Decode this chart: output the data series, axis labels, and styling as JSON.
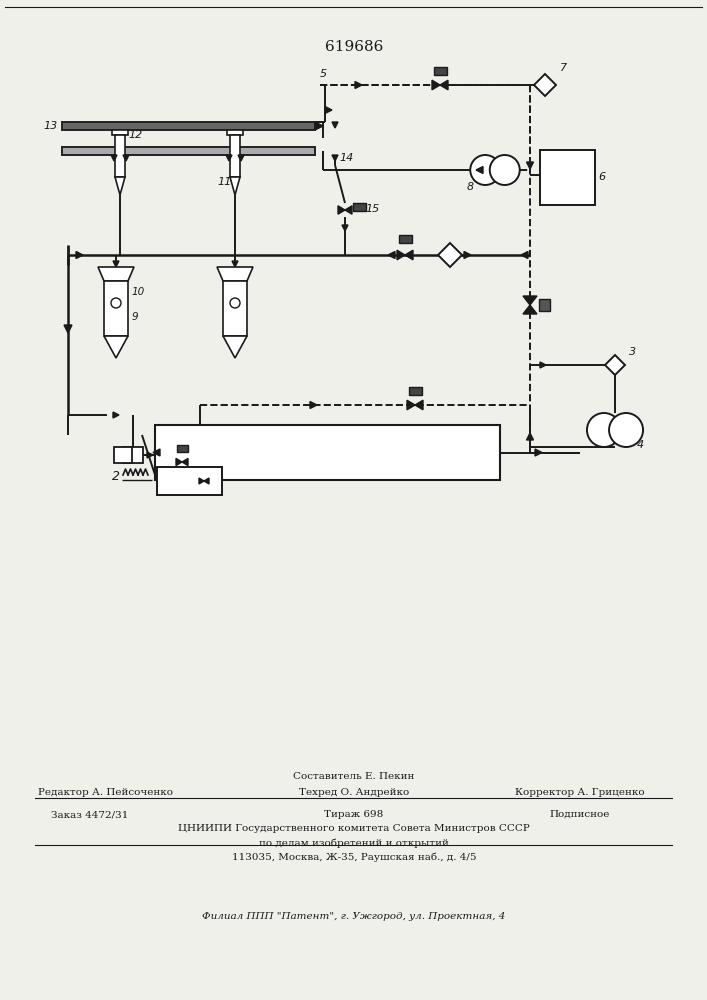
{
  "title": "619686",
  "bg": "#f0f0eb",
  "lc": "#1a1a1a",
  "footer": {
    "line1": "Составитель Е. Пекин",
    "line2_left": "Редактор А. Пейсоченко",
    "line2_mid": "Техред О. Андрейко",
    "line2_right": "Корректор А. Гриценко",
    "line3_left": "Заказ 4472/31",
    "line3_mid": "Тираж 698",
    "line3_right": "Подписное",
    "line4": "ЦНИИПИ Государственного комитета Совета Министров СССР",
    "line5": "по делам изобретений и открытий",
    "line6": "113035, Москва, Ж-35, Раушская наб., д. 4/5",
    "line7": "Филиал ППП \"Патент\", г. Ужгород, ул. Проектная, 4"
  }
}
